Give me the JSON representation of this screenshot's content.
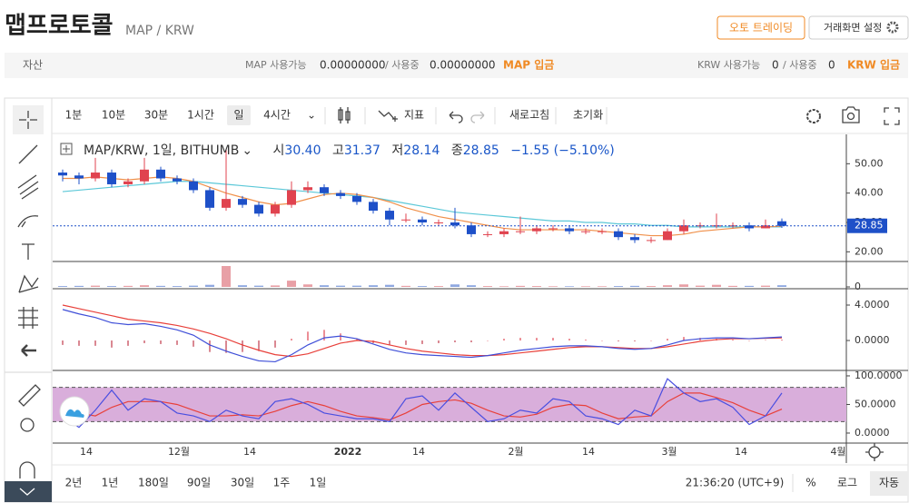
{
  "header": {
    "title": "맵프로토콜",
    "pair": "MAP / KRW",
    "auto_trading": "오토 트레이딩",
    "settings": "거래화면 설정"
  },
  "balances": {
    "label": "자산",
    "map": {
      "available_label": "MAP 사용가능",
      "available": "0.00000000",
      "used_label": "/ 사용중",
      "used": "0.00000000",
      "deposit": "MAP 입금"
    },
    "krw": {
      "available_label": "KRW 사용가능",
      "available": "0",
      "used_label": "/ 사용중",
      "used": "0",
      "deposit": "KRW 입금"
    }
  },
  "toolbar": {
    "intervals": [
      "1분",
      "10분",
      "30분",
      "1시간",
      "일",
      "4시간"
    ],
    "selected": 4,
    "indicator": "지표",
    "refresh": "새로고침",
    "reset": "초기화"
  },
  "legend": {
    "symbol": "MAP/KRW, 1일, BITHUMB",
    "open_label": "시",
    "open": "30.40",
    "high_label": "고",
    "high": "31.37",
    "low_label": "저",
    "low": "28.14",
    "close_label": "종",
    "close": "28.85",
    "change": "−1.55 (−5.10%)"
  },
  "chart": {
    "price": {
      "ylim": [
        16.7,
        60
      ],
      "yticks": [
        {
          "value": 50,
          "label": "50.00"
        },
        {
          "value": 40,
          "label": "40.00"
        },
        {
          "value": 30,
          "label": "30.00"
        },
        {
          "value": 20,
          "label": "20.00"
        }
      ],
      "last": {
        "value": 28.85,
        "label": "28.85"
      },
      "candles": [
        [
          47,
          48,
          44,
          46
        ],
        [
          46,
          47,
          43,
          45
        ],
        [
          45,
          52,
          44,
          47
        ],
        [
          47,
          48,
          42,
          43
        ],
        [
          43,
          45,
          42,
          44
        ],
        [
          44,
          52,
          43,
          48
        ],
        [
          48,
          49,
          44,
          45
        ],
        [
          45,
          46,
          43,
          44
        ],
        [
          44,
          45,
          40,
          41
        ],
        [
          41,
          42,
          34,
          35
        ],
        [
          35,
          55,
          34,
          38
        ],
        [
          38,
          39,
          35,
          36
        ],
        [
          36,
          37,
          32,
          33
        ],
        [
          33,
          37,
          32,
          36
        ],
        [
          36,
          44,
          35,
          41
        ],
        [
          41,
          44,
          40,
          42
        ],
        [
          42,
          43,
          39,
          40
        ],
        [
          40,
          41,
          38,
          39
        ],
        [
          39,
          40,
          36,
          37
        ],
        [
          37,
          38,
          33,
          34
        ],
        [
          34,
          35,
          29,
          31
        ],
        [
          31,
          33,
          30,
          31
        ],
        [
          31,
          32,
          29,
          30
        ],
        [
          30,
          31,
          29,
          30
        ],
        [
          30,
          35,
          28,
          29
        ],
        [
          29,
          30,
          25,
          26
        ],
        [
          26,
          27,
          25,
          26
        ],
        [
          26,
          28,
          25,
          27
        ],
        [
          27,
          32,
          26,
          27
        ],
        [
          27,
          29,
          26,
          28
        ],
        [
          28,
          29,
          27,
          28
        ],
        [
          28,
          29,
          26,
          27
        ],
        [
          27,
          28,
          26,
          27
        ],
        [
          27,
          28,
          26,
          27
        ],
        [
          27,
          28,
          24,
          25
        ],
        [
          25,
          26,
          23,
          24
        ],
        [
          24,
          25,
          23,
          24
        ],
        [
          24,
          28,
          24,
          27
        ],
        [
          27,
          31,
          26,
          29
        ],
        [
          29,
          30,
          28,
          29
        ],
        [
          29,
          33,
          28,
          29
        ],
        [
          29,
          30,
          28,
          29
        ],
        [
          29,
          30,
          27,
          28
        ],
        [
          28,
          31,
          28,
          29
        ],
        [
          30.4,
          31.37,
          28.14,
          28.85
        ]
      ],
      "ma_short": [
        45,
        45,
        45.5,
        45,
        44.5,
        45,
        45.5,
        45,
        44,
        42,
        40,
        38.5,
        37,
        36,
        36.5,
        38,
        39.5,
        40,
        39.5,
        38.5,
        37,
        35,
        33.5,
        32,
        31,
        30,
        29,
        28,
        27.5,
        27.5,
        27.5,
        27.5,
        27.5,
        27,
        26.5,
        26,
        25.5,
        25.5,
        26,
        27,
        27.5,
        28,
        28.5,
        28.5,
        28.7
      ],
      "ma_long": [
        40.5,
        41,
        41.5,
        42,
        42.5,
        43,
        43.5,
        44,
        44,
        43.5,
        43,
        42.5,
        42,
        41.5,
        41,
        40.5,
        40,
        39.5,
        39,
        38.5,
        37.5,
        36.5,
        35.5,
        34.5,
        33.5,
        33,
        32.5,
        32,
        31.5,
        31,
        30.5,
        30.5,
        30,
        30,
        29.5,
        29.5,
        29,
        29,
        28.5,
        28.5,
        28.5,
        28.5,
        28.5,
        28.5,
        28.5
      ]
    },
    "volume": {
      "ylim": [
        -8.7,
        113
      ],
      "yticks": [
        0
      ],
      "values": [
        4,
        5,
        6,
        4,
        5,
        8,
        5,
        4,
        6,
        10,
        100,
        8,
        6,
        7,
        30,
        12,
        8,
        6,
        6,
        8,
        10,
        5,
        4,
        4,
        12,
        8,
        4,
        3,
        5,
        4,
        3,
        3,
        3,
        3,
        4,
        5,
        4,
        8,
        12,
        6,
        10,
        5,
        5,
        6,
        8
      ]
    },
    "macd": {
      "ylim": [
        -3.38,
        5.64
      ],
      "yticks": [
        {
          "value": 4,
          "label": "4.0000"
        },
        {
          "value": 0,
          "label": "0.0000"
        }
      ],
      "macd": [
        3.5,
        3.0,
        2.6,
        2.0,
        1.8,
        1.9,
        1.6,
        1.2,
        0.6,
        -0.5,
        -1.2,
        -1.8,
        -2.3,
        -2.4,
        -1.6,
        -0.5,
        0.3,
        0.5,
        0.2,
        -0.4,
        -1.0,
        -1.4,
        -1.6,
        -1.7,
        -1.8,
        -1.9,
        -1.7,
        -1.4,
        -1.1,
        -0.9,
        -0.7,
        -0.6,
        -0.6,
        -0.7,
        -0.9,
        -1.0,
        -0.9,
        -0.5,
        0,
        0.2,
        0.3,
        0.3,
        0.2,
        0.3,
        0.4
      ],
      "signal": [
        4.0,
        3.6,
        3.2,
        2.8,
        2.4,
        2.2,
        2.0,
        1.7,
        1.3,
        0.8,
        0.2,
        -0.5,
        -1.1,
        -1.6,
        -1.8,
        -1.5,
        -0.9,
        -0.3,
        0,
        -0.1,
        -0.5,
        -0.9,
        -1.2,
        -1.4,
        -1.6,
        -1.7,
        -1.7,
        -1.6,
        -1.4,
        -1.2,
        -1.0,
        -0.8,
        -0.7,
        -0.7,
        -0.8,
        -0.9,
        -0.9,
        -0.7,
        -0.4,
        -0.1,
        0.1,
        0.2,
        0.2,
        0.25,
        0.3
      ],
      "hist": [
        -0.5,
        -0.6,
        -0.6,
        -0.8,
        -0.6,
        -0.3,
        -0.4,
        -0.5,
        -0.7,
        -1.3,
        -1.4,
        -1.3,
        -1.2,
        -0.8,
        0.2,
        1.0,
        1.2,
        0.8,
        0.2,
        -0.3,
        -0.5,
        -0.5,
        -0.4,
        -0.3,
        -0.2,
        -0.2,
        0,
        0.2,
        0.3,
        0.3,
        0.3,
        0.2,
        0.1,
        0,
        -0.1,
        -0.1,
        0,
        0.2,
        0.4,
        0.3,
        0.2,
        0.1,
        0,
        0.05,
        0.1
      ]
    },
    "stoch": {
      "ylim": [
        -17.5,
        106.3
      ],
      "yticks": [
        {
          "value": 100,
          "label": "100.0000"
        },
        {
          "value": 50,
          "label": "50.0000"
        },
        {
          "value": 0,
          "label": "0.0000"
        }
      ],
      "band": [
        20,
        80
      ],
      "k": [
        30,
        10,
        40,
        75,
        40,
        60,
        55,
        35,
        30,
        20,
        40,
        30,
        25,
        55,
        60,
        50,
        35,
        30,
        25,
        25,
        20,
        60,
        65,
        40,
        70,
        45,
        20,
        25,
        40,
        35,
        60,
        55,
        30,
        25,
        15,
        40,
        30,
        95,
        70,
        55,
        60,
        45,
        15,
        30,
        70
      ],
      "d": [
        45,
        35,
        30,
        45,
        55,
        55,
        55,
        50,
        40,
        30,
        30,
        32,
        30,
        38,
        48,
        55,
        48,
        38,
        30,
        27,
        23,
        35,
        50,
        55,
        58,
        52,
        40,
        30,
        28,
        33,
        45,
        50,
        48,
        35,
        25,
        28,
        30,
        55,
        70,
        70,
        62,
        53,
        40,
        30,
        42
      ]
    },
    "x_labels": [
      "14",
      "12월",
      "14",
      "2022",
      "14",
      "2월",
      "14",
      "3월",
      "14",
      "4월"
    ]
  },
  "footer": {
    "ranges": [
      "2년",
      "1년",
      "180일",
      "90일",
      "30일",
      "1주",
      "1일"
    ],
    "time": "21:36:20 (UTC+9)",
    "percent": "%",
    "log": "로그",
    "auto": "자동"
  }
}
